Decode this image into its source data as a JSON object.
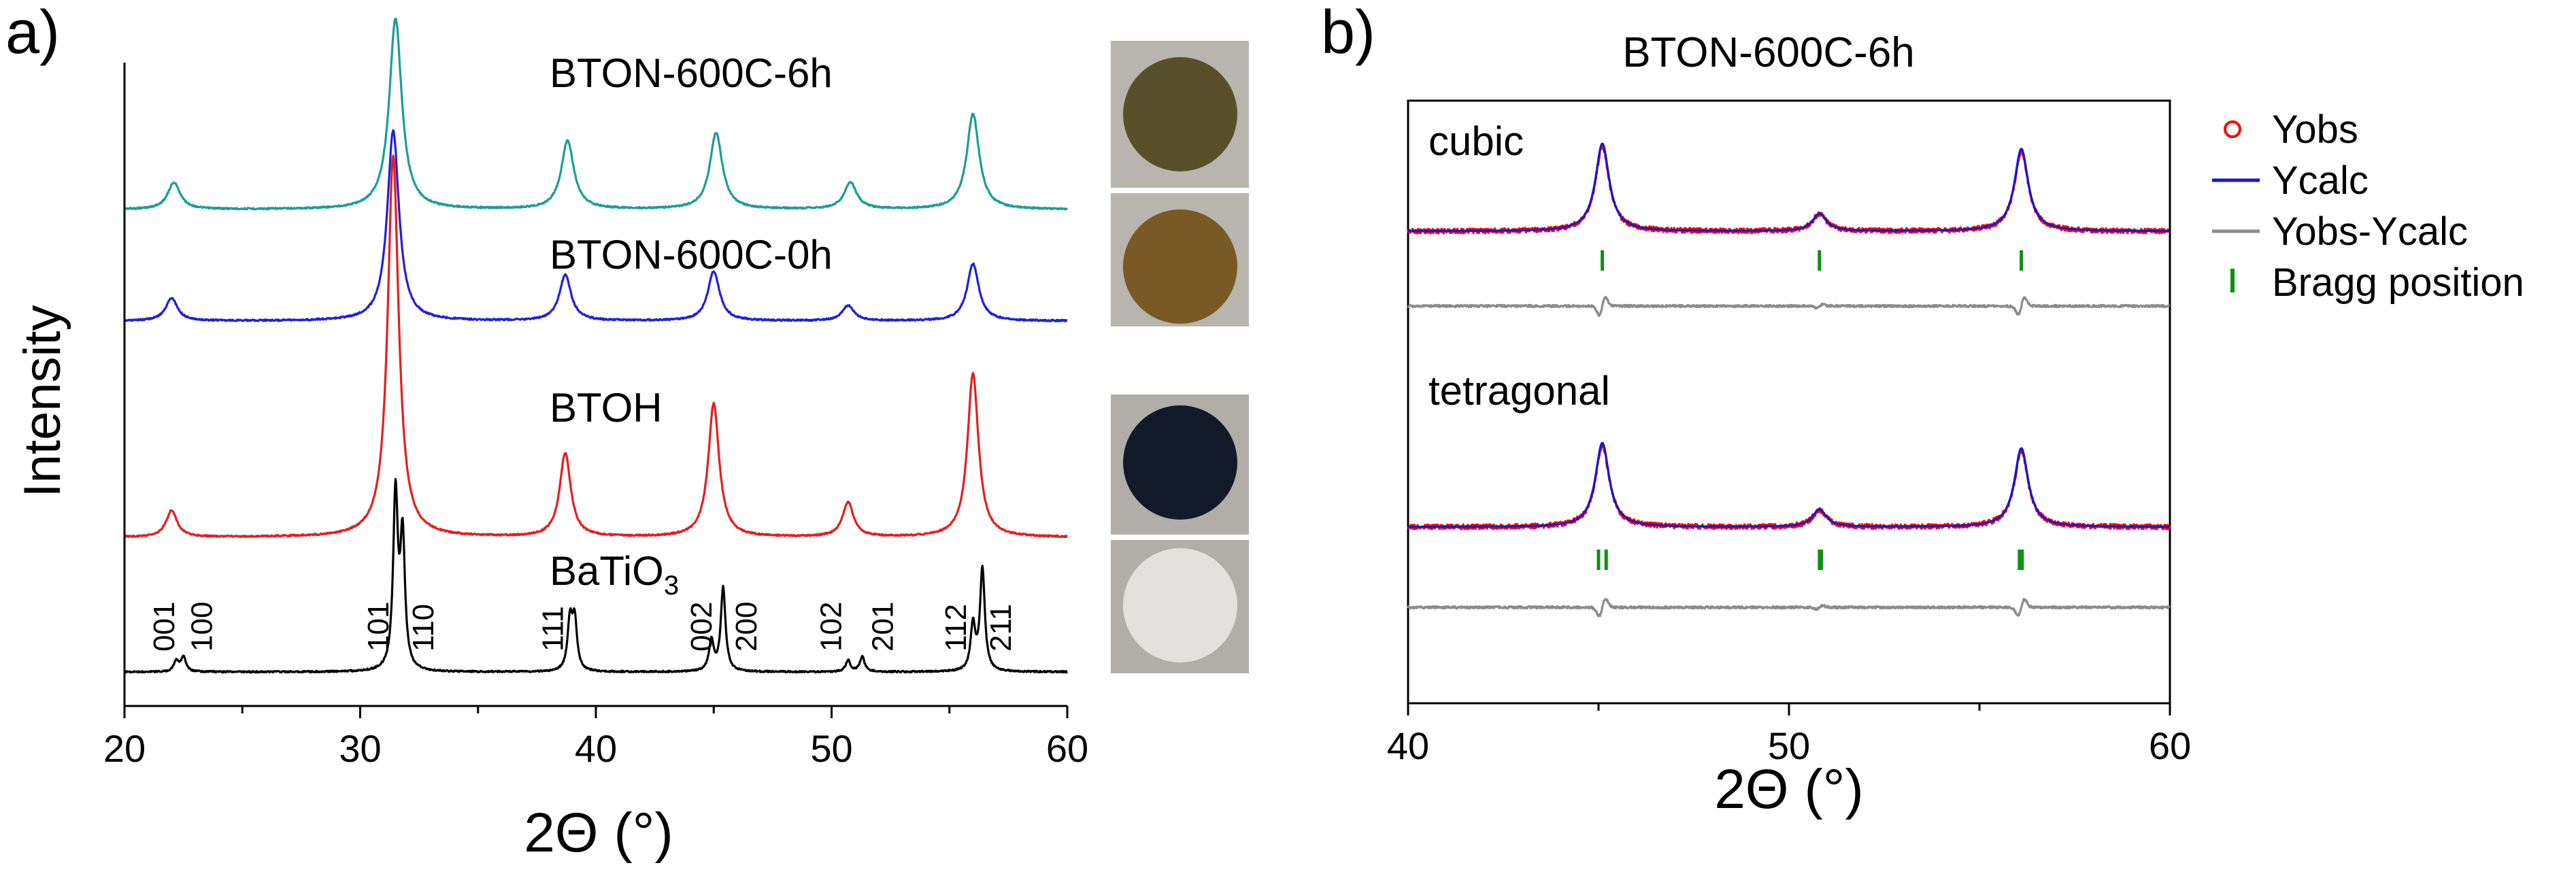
{
  "panel_a": {
    "label": "a)",
    "photo_colors": [
      "#57502a",
      "#7a5a24",
      "#121a2a",
      "#e3e1de"
    ],
    "chart_data": {
      "type": "line",
      "xlabel": "2Θ (°)",
      "ylabel": "Intensity",
      "xlim": [
        20,
        60
      ],
      "xticks": [
        20,
        30,
        40,
        50,
        60
      ],
      "series": [
        {
          "name": "BTON-600C-6h",
          "color": "#1a9e96",
          "peaks": [
            [
              22.1,
              0.07
            ],
            [
              31.5,
              0.5
            ],
            [
              38.8,
              0.18
            ],
            [
              45.1,
              0.2
            ],
            [
              50.8,
              0.07
            ],
            [
              56.0,
              0.25
            ]
          ],
          "width": 0.32
        },
        {
          "name": "BTON-600C-0h",
          "color": "#1f1fdc",
          "peaks": [
            [
              22.0,
              0.06
            ],
            [
              31.4,
              0.5
            ],
            [
              38.7,
              0.12
            ],
            [
              45.0,
              0.13
            ],
            [
              50.7,
              0.04
            ],
            [
              56.0,
              0.15
            ]
          ],
          "width": 0.3
        },
        {
          "name": "BTOH",
          "color": "#e51e1e",
          "peaks": [
            [
              22.0,
              0.07
            ],
            [
              31.4,
              1.0
            ],
            [
              38.7,
              0.22
            ],
            [
              45.0,
              0.35
            ],
            [
              50.7,
              0.09
            ],
            [
              56.0,
              0.43
            ]
          ],
          "width": 0.28
        },
        {
          "name": "BaTiO",
          "subscript": "3",
          "color": "#000000",
          "peaks": [
            [
              22.2,
              0.03
            ],
            [
              22.5,
              0.04
            ],
            [
              31.5,
              0.46
            ],
            [
              31.8,
              0.34
            ],
            [
              38.9,
              0.13
            ],
            [
              39.1,
              0.13
            ],
            [
              44.9,
              0.08
            ],
            [
              45.4,
              0.22
            ],
            [
              50.7,
              0.03
            ],
            [
              51.3,
              0.04
            ],
            [
              56.0,
              0.12
            ],
            [
              56.4,
              0.27
            ]
          ],
          "width": 0.12
        }
      ],
      "hkl_labels": [
        {
          "text": "001",
          "x": 21.7
        },
        {
          "text": "100",
          "x": 23.3
        },
        {
          "text": "101",
          "x": 30.8
        },
        {
          "text": "110",
          "x": 32.7
        },
        {
          "text": "111",
          "x": 38.2
        },
        {
          "text": "002",
          "x": 44.5
        },
        {
          "text": "200",
          "x": 46.4
        },
        {
          "text": "102",
          "x": 50.0
        },
        {
          "text": "201",
          "x": 52.2
        },
        {
          "text": "112",
          "x": 55.3
        },
        {
          "text": "211",
          "x": 57.2
        }
      ]
    }
  },
  "panel_b": {
    "label": "b)",
    "title": "BTON-600C-6h",
    "chart_data": {
      "type": "line",
      "xlabel": "2Θ (°)",
      "xlim": [
        40,
        60
      ],
      "xticks": [
        40,
        50,
        60
      ],
      "legend": [
        {
          "label": "Yobs",
          "marker": "circle",
          "color": "#ff0000"
        },
        {
          "label": "Ycalc",
          "marker": "line",
          "color": "#1818cc"
        },
        {
          "label": "Yobs-Ycalc",
          "marker": "line",
          "color": "#8c8c8c"
        },
        {
          "label": "Bragg position",
          "marker": "tick",
          "color": "#109010"
        }
      ],
      "subplots": [
        {
          "name": "cubic",
          "peaks": [
            [
              45.1,
              0.5
            ],
            [
              50.8,
              0.1
            ],
            [
              56.1,
              0.47
            ]
          ],
          "bragg_positions": [
            45.1,
            50.8,
            56.1
          ]
        },
        {
          "name": "tetragonal",
          "peaks": [
            [
              45.1,
              0.48
            ],
            [
              50.8,
              0.1
            ],
            [
              56.1,
              0.45
            ]
          ],
          "bragg_positions": [
            45.0,
            45.2,
            50.8,
            50.85,
            56.05,
            56.12
          ]
        }
      ]
    }
  }
}
